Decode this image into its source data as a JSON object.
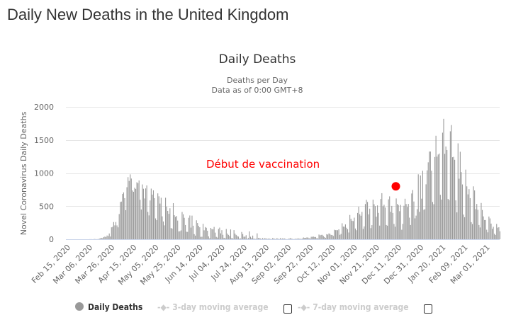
{
  "page_title": "Daily New Deaths in the United Kingdom",
  "chart_data": {
    "type": "bar",
    "title": "Daily Deaths",
    "subtitle": [
      "Deaths per Day",
      "Data as of 0:00 GMT+8"
    ],
    "ylabel": "Novel Coronavirus Daily Deaths",
    "xlabel": "",
    "ylim": [
      0,
      2000
    ],
    "yticks": [
      "0",
      "500",
      "1000",
      "1500",
      "2000"
    ],
    "ytick_values": [
      0,
      500,
      1000,
      1500,
      2000
    ],
    "grid": true,
    "start_date": "2020-02-15",
    "tick_every_days": 20,
    "xtick_labels": [
      "Feb 15, 2020",
      "Mar 06, 2020",
      "Mar 26, 2020",
      "Apr 15, 2020",
      "May 05, 2020",
      "May 25, 2020",
      "Jun 14, 2020",
      "Jul 04, 2020",
      "Jul 24, 2020",
      "Aug 13, 2020",
      "Sep 02, 2020",
      "Sep 22, 2020",
      "Oct 12, 2020",
      "Nov 01, 2020",
      "Nov 21, 2020",
      "Dec 11, 2020",
      "Dec 31, 2020",
      "Jan 20, 2021",
      "Feb 09, 2021",
      "Mar 01, 2021"
    ],
    "series": [
      {
        "name": "Daily Deaths",
        "color": "#999999",
        "values": [
          0,
          0,
          0,
          0,
          0,
          0,
          0,
          0,
          0,
          0,
          0,
          0,
          0,
          0,
          0,
          0,
          0,
          0,
          0,
          1,
          1,
          1,
          0,
          2,
          4,
          0,
          2,
          1,
          10,
          14,
          20,
          16,
          33,
          40,
          33,
          56,
          48,
          87,
          41,
          180,
          187,
          260,
          210,
          260,
          209,
          180,
          381,
          563,
          569,
          684,
          708,
          621,
          439,
          786,
          938,
          881,
          980,
          917,
          737,
          717,
          778,
          761,
          861,
          847,
          888,
          596,
          449,
          828,
          763,
          616,
          768,
          813,
          413,
          360,
          586,
          765,
          674,
          739,
          621,
          315,
          288,
          693,
          649,
          539,
          627,
          346,
          268,
          210,
          627,
          494,
          428,
          384,
          468,
          170,
          160,
          545,
          363,
          338,
          351,
          282,
          118,
          121,
          134,
          412,
          377,
          324,
          215,
          113,
          111,
          324,
          359,
          176,
          357,
          204,
          77,
          55,
          286,
          245,
          202,
          181,
          36,
          38,
          233,
          135,
          184,
          173,
          128,
          43,
          15,
          171,
          154,
          149,
          186,
          100,
          36,
          25,
          155,
          176,
          89,
          137,
          67,
          22,
          16,
          155,
          85,
          66,
          48,
          148,
          21,
          11,
          138,
          85,
          66,
          48,
          40,
          11,
          11,
          110,
          79,
          38,
          40,
          61,
          7,
          18,
          119,
          38,
          20,
          55,
          10,
          5,
          7,
          89,
          18,
          20,
          10,
          5,
          18,
          4,
          17,
          12,
          6,
          7,
          11,
          3,
          2,
          16,
          12,
          6,
          2,
          18,
          6,
          3,
          16,
          6,
          12,
          9,
          12,
          2,
          1,
          3,
          12,
          16,
          10,
          5,
          2,
          3,
          8,
          6,
          14,
          9,
          6,
          5,
          9,
          27,
          20,
          21,
          27,
          27,
          18,
          11,
          37,
          37,
          40,
          34,
          34,
          17,
          13,
          71,
          59,
          66,
          67,
          49,
          33,
          19,
          76,
          70,
          87,
          81,
          65,
          65,
          50,
          143,
          137,
          138,
          136,
          150,
          67,
          80,
          241,
          191,
          189,
          224,
          174,
          151,
          102,
          367,
          310,
          280,
          274,
          326,
          162,
          136,
          397,
          492,
          378,
          355,
          413,
          156,
          194,
          532,
          595,
          563,
          376,
          462,
          168,
          213,
          598,
          529,
          501,
          341,
          511,
          398,
          206,
          608,
          696,
          498,
          521,
          479,
          215,
          205,
          603,
          648,
          414,
          504,
          397,
          231,
          189,
          616,
          533,
          516,
          424,
          519,
          144,
          232,
          506,
          612,
          532,
          489,
          534,
          326,
          215,
          691,
          744,
          570,
          316,
          357,
          454,
          981,
          414,
          964,
          613,
          1035,
          445,
          454,
          830,
          1041,
          1162,
          1325,
          1325,
          1035,
          563,
          529,
          1243,
          1564,
          1248,
          1280,
          1295,
          671,
          599,
          1610,
          1820,
          1290,
          1401,
          1348,
          610,
          592,
          1631,
          1725,
          1239,
          1245,
          1200,
          587,
          406,
          1449,
          915,
          1322,
          1014,
          828,
          373,
          333,
          1052,
          799,
          678,
          758,
          621,
          258,
          230,
          799,
          738,
          454,
          533,
          445,
          215,
          178,
          548,
          442,
          345,
          290,
          290,
          144,
          104,
          343,
          315,
          236,
          158,
          188,
          82,
          65,
          231,
          175,
          181,
          121
        ]
      }
    ],
    "annotation": {
      "text": "Début de vaccination",
      "color": "#ff0000",
      "date": "2020-12-08",
      "value": 800
    },
    "legend": {
      "placement": "bottom",
      "items": [
        {
          "label": "Daily Deaths",
          "active": true
        },
        {
          "label": "3-day moving average",
          "active": false
        },
        {
          "label": "7-day moving average",
          "active": false
        }
      ]
    }
  }
}
